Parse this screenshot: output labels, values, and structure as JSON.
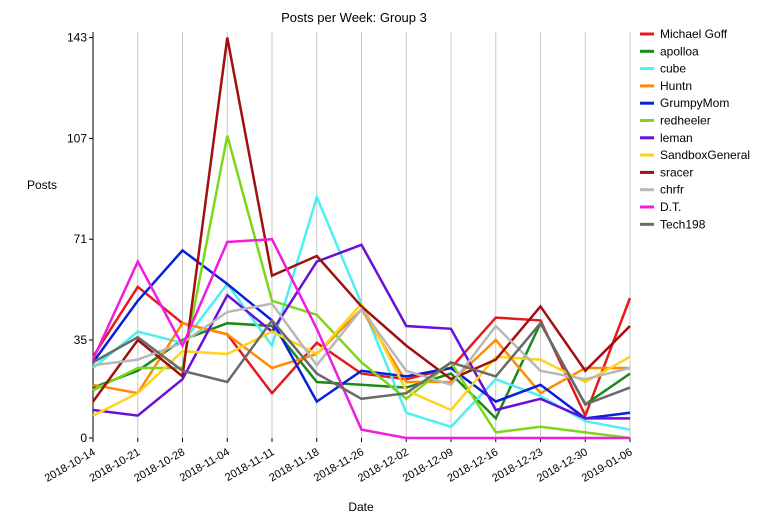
{
  "chart_data": {
    "type": "line",
    "title": "Posts per Week: Group 3",
    "xlabel": "Date",
    "ylabel": "Posts",
    "x": [
      "2018-10-14",
      "2018-10-21",
      "2018-10-28",
      "2018-11-04",
      "2018-11-11",
      "2018-11-18",
      "2018-11-26",
      "2018-12-02",
      "2018-12-09",
      "2018-12-16",
      "2018-12-23",
      "2018-12-30",
      "2019-01-06"
    ],
    "yticks": [
      0,
      35,
      71,
      107,
      143
    ],
    "ylim": [
      0,
      145
    ],
    "grid": "vertical",
    "legend_position": "right",
    "series": [
      {
        "name": "Michael Goff",
        "color": "#e41a1c",
        "values": [
          29,
          54,
          41,
          37,
          16,
          34,
          23,
          21,
          25,
          43,
          42,
          8,
          50
        ]
      },
      {
        "name": "apolloa",
        "color": "#1a8a1a",
        "values": [
          18,
          24,
          35,
          41,
          40,
          20,
          19,
          18,
          23,
          7,
          41,
          12,
          23
        ]
      },
      {
        "name": "cube",
        "color": "#4df0f0",
        "values": [
          25,
          38,
          34,
          55,
          33,
          86,
          48,
          9,
          4,
          21,
          15,
          6,
          3
        ]
      },
      {
        "name": "Huntn",
        "color": "#ff8c00",
        "values": [
          19,
          16,
          41,
          37,
          25,
          30,
          46,
          20,
          20,
          35,
          16,
          25,
          25
        ]
      },
      {
        "name": "GrumpyMom",
        "color": "#0a1fd8",
        "values": [
          27,
          49,
          67,
          55,
          42,
          13,
          24,
          22,
          25,
          13,
          19,
          7,
          9
        ]
      },
      {
        "name": "redheeler",
        "color": "#7ed61c",
        "values": [
          17,
          25,
          25,
          108,
          49,
          44,
          27,
          14,
          27,
          2,
          4,
          2,
          0
        ]
      },
      {
        "name": "leman",
        "color": "#6a0fd8",
        "values": [
          10,
          8,
          21,
          51,
          38,
          63,
          69,
          40,
          39,
          10,
          14,
          7,
          7
        ]
      },
      {
        "name": "SandboxGeneral",
        "color": "#ffd21f",
        "values": [
          8,
          16,
          31,
          30,
          38,
          30,
          48,
          17,
          10,
          29,
          28,
          20,
          29
        ]
      },
      {
        "name": "sracer",
        "color": "#a01010",
        "values": [
          13,
          35,
          22,
          143,
          58,
          65,
          47,
          33,
          21,
          28,
          47,
          24,
          40
        ]
      },
      {
        "name": "chrfr",
        "color": "#b8b8b8",
        "values": [
          26,
          28,
          34,
          45,
          48,
          26,
          46,
          24,
          19,
          40,
          24,
          21,
          25
        ]
      },
      {
        "name": "D.T.",
        "color": "#f01cdf",
        "values": [
          28,
          63,
          33,
          70,
          71,
          39,
          3,
          0,
          0,
          0,
          0,
          0,
          0
        ]
      },
      {
        "name": "Tech198",
        "color": "#6a6a6a",
        "values": [
          27,
          36,
          24,
          20,
          42,
          23,
          14,
          16,
          27,
          22,
          41,
          12,
          18
        ]
      }
    ]
  }
}
